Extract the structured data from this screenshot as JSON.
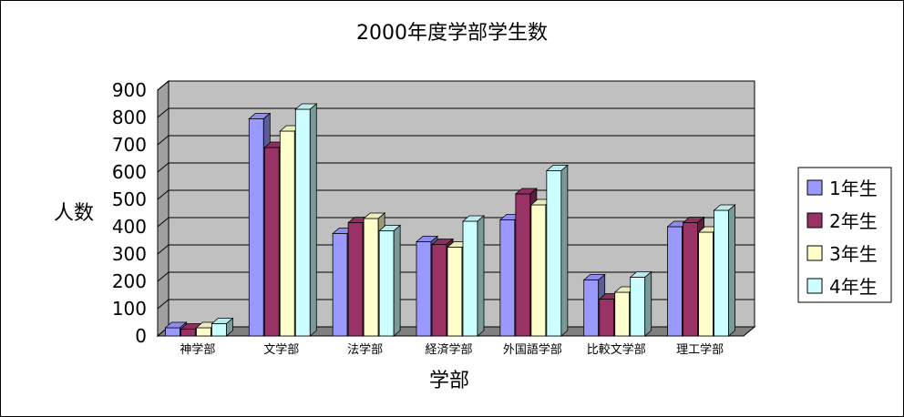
{
  "chart_data": {
    "type": "bar",
    "title": "2000年度学部学生数",
    "xlabel": "学部",
    "ylabel": "人数",
    "ylim": [
      0,
      900
    ],
    "yticks": [
      0,
      100,
      200,
      300,
      400,
      500,
      600,
      700,
      800,
      900
    ],
    "grid": true,
    "legend_position": "right",
    "categories": [
      "神学部",
      "文学部",
      "法学部",
      "経済学部",
      "外国語学部",
      "比較文学部",
      "理工学部"
    ],
    "series": [
      {
        "name": "1年生",
        "color": "#9999ff",
        "values": [
          30,
          795,
          375,
          345,
          425,
          205,
          400
        ]
      },
      {
        "name": "2年生",
        "color": "#993366",
        "values": [
          25,
          690,
          415,
          335,
          520,
          135,
          415
        ]
      },
      {
        "name": "3年生",
        "color": "#ffffcc",
        "values": [
          30,
          750,
          430,
          325,
          480,
          160,
          380
        ]
      },
      {
        "name": "4年生",
        "color": "#ccffff",
        "values": [
          45,
          830,
          385,
          420,
          605,
          215,
          460
        ]
      }
    ]
  }
}
